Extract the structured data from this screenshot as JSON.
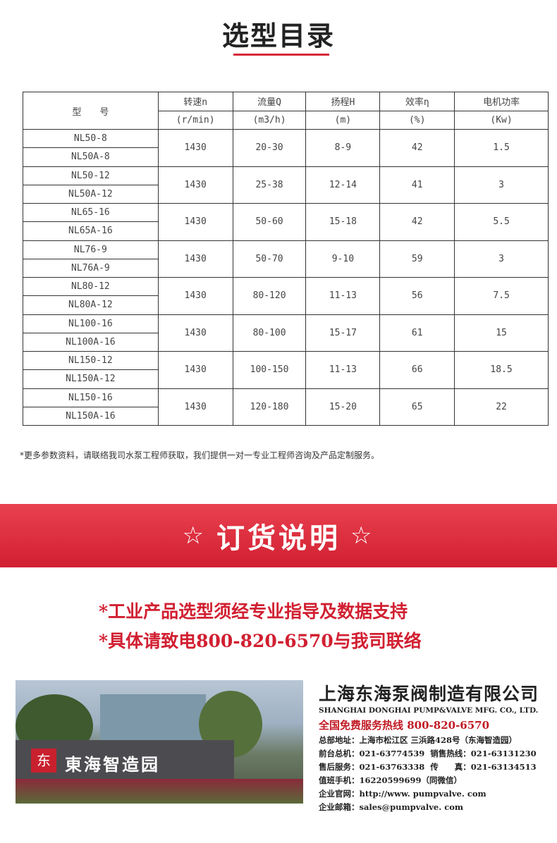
{
  "section_title": "选型目录",
  "table": {
    "headers": [
      "型　　号",
      "转速n",
      "流量Q",
      "扬程H",
      "效率η",
      "电机功率"
    ],
    "units": [
      "(r/min)",
      "(m3/h)",
      "(m)",
      "(%)",
      "(Kw)"
    ],
    "groups": [
      {
        "models": [
          "NL50-8",
          "NL50A-8"
        ],
        "speed": "1430",
        "flow": "20-30",
        "head": "8-9",
        "eff": "42",
        "power": "1.5"
      },
      {
        "models": [
          "NL50-12",
          "NL50A-12"
        ],
        "speed": "1430",
        "flow": "25-38",
        "head": "12-14",
        "eff": "41",
        "power": "3"
      },
      {
        "models": [
          "NL65-16",
          "NL65A-16"
        ],
        "speed": "1430",
        "flow": "50-60",
        "head": "15-18",
        "eff": "42",
        "power": "5.5"
      },
      {
        "models": [
          "NL76-9",
          "NL76A-9"
        ],
        "speed": "1430",
        "flow": "50-70",
        "head": "9-10",
        "eff": "59",
        "power": "3"
      },
      {
        "models": [
          "NL80-12",
          "NL80A-12"
        ],
        "speed": "1430",
        "flow": "80-120",
        "head": "11-13",
        "eff": "56",
        "power": "7.5"
      },
      {
        "models": [
          "NL100-16",
          "NL100A-16"
        ],
        "speed": "1430",
        "flow": "80-100",
        "head": "15-17",
        "eff": "61",
        "power": "15"
      },
      {
        "models": [
          "NL150-12",
          "NL150A-12"
        ],
        "speed": "1430",
        "flow": "100-150",
        "head": "11-13",
        "eff": "66",
        "power": "18.5"
      },
      {
        "models": [
          "NL150-16",
          "NL150A-16"
        ],
        "speed": "1430",
        "flow": "120-180",
        "head": "15-20",
        "eff": "65",
        "power": "22"
      }
    ]
  },
  "note": "*更多参数资料，请联络我司水泵工程师获取，我们提供一对一专业工程师咨询及产品定制服务。",
  "banner": {
    "star": "☆",
    "title": "订货说明"
  },
  "order_lines": [
    "*工业产品选型须经专业指导及数据支持",
    "*具体请致电800-820-6570与我司联络"
  ],
  "photo": {
    "sign": "東海智造园",
    "logo": "东"
  },
  "company": {
    "name_cn": "上海东海泵阀制造有限公司",
    "name_en": "SHANGHAI DONGHAI PUMP&VALVE MFG. CO., LTD.",
    "hotline": "全国免费服务热线  800-820-6570",
    "lines": [
      "总部地址：上海市松江区 三浜路428号（东海智造园）",
      "前台总机：021-63774539  销售热线：021-63131230",
      "售后服务：021-63763338  传　　真：021-63134513",
      "值班手机：16220599699（同微信）",
      "企业官网：http://www. pumpvalve. com",
      "企业邮箱：sales@pumpvalve. com"
    ]
  }
}
